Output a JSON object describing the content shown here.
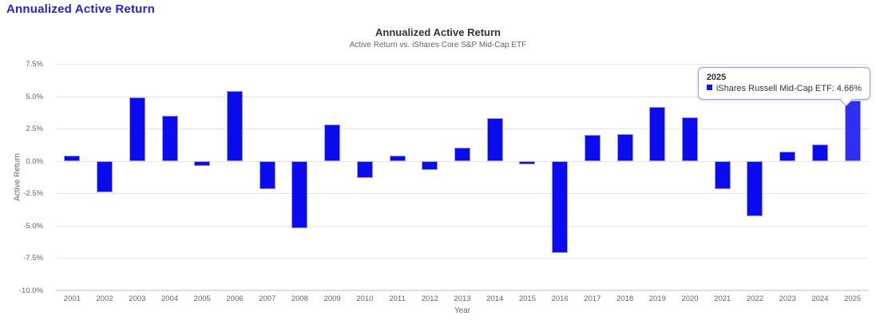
{
  "page": {
    "title": "Annualized Active Return",
    "title_color": "#2222dd"
  },
  "chart_data": {
    "type": "bar",
    "title": "Annualized Active Return",
    "subtitle": "Active Return vs. iShares Core S&P Mid-Cap ETF",
    "xlabel": "Year",
    "ylabel": "Active Return",
    "categories": [
      "2001",
      "2002",
      "2003",
      "2004",
      "2005",
      "2006",
      "2007",
      "2008",
      "2009",
      "2010",
      "2011",
      "2012",
      "2013",
      "2014",
      "2015",
      "2016",
      "2017",
      "2018",
      "2019",
      "2020",
      "2021",
      "2022",
      "2023",
      "2024",
      "2025"
    ],
    "values": [
      0.4,
      -2.4,
      4.9,
      3.5,
      -0.4,
      5.4,
      -2.2,
      -5.2,
      2.8,
      -1.3,
      0.4,
      -0.7,
      1.0,
      3.3,
      -0.25,
      -7.1,
      2.0,
      2.1,
      4.2,
      3.4,
      -2.2,
      -4.3,
      0.7,
      1.3,
      4.66
    ],
    "ylim": [
      -10,
      7.5
    ],
    "yticks": [
      {
        "value": 7.5,
        "label": "7.5%"
      },
      {
        "value": 5.0,
        "label": "5.0%"
      },
      {
        "value": 2.5,
        "label": "2.5%"
      },
      {
        "value": 0.0,
        "label": "0.0%"
      },
      {
        "value": -2.5,
        "label": "-2.5%"
      },
      {
        "value": -5.0,
        "label": "-5.0%"
      },
      {
        "value": -7.5,
        "label": "-7.5%"
      },
      {
        "value": -10.0,
        "label": "-10.0%"
      }
    ],
    "grid": true,
    "legend": false,
    "bar_color": "#0b0bf0",
    "bar_border_color": "#9a9aee",
    "hover_bar_color": "#2f2ff4",
    "hover_bar_border_color": "#a8a8f2",
    "hover_category": "2025"
  },
  "tooltip": {
    "title": "2025",
    "line": "iShares Russell Mid-Cap ETF: 4.66%",
    "marker_color": "#1414f0"
  }
}
